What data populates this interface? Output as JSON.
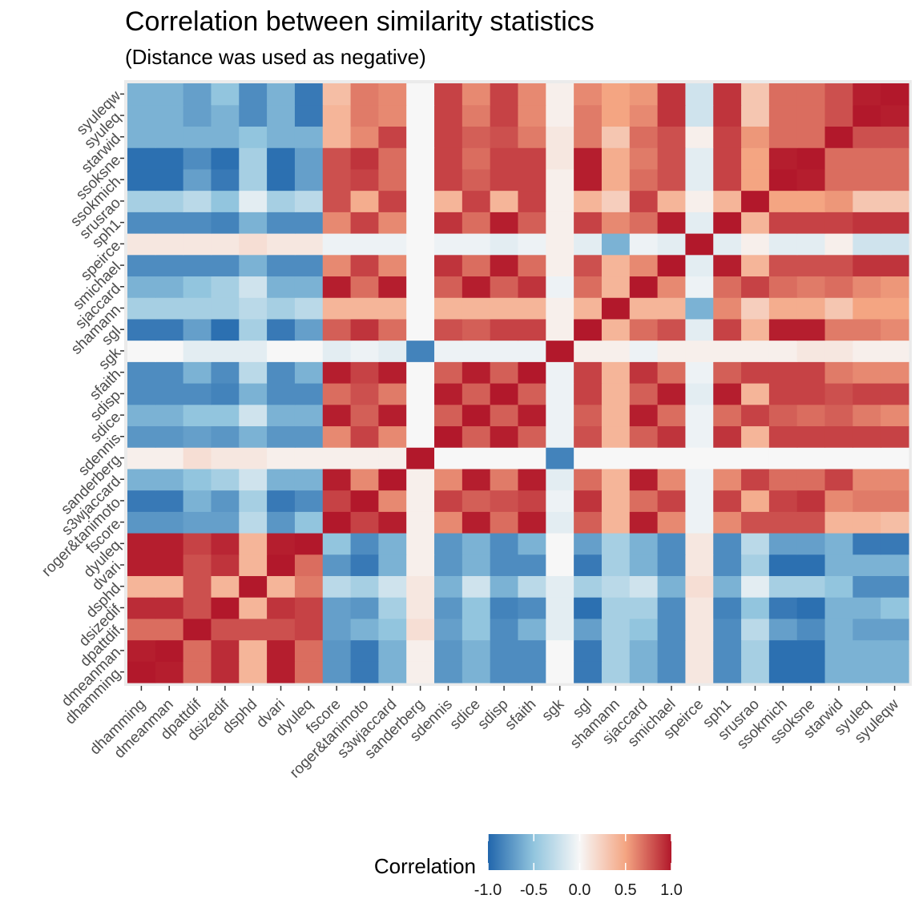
{
  "chart_data": {
    "type": "heatmap",
    "title": "Correlation between similarity statistics",
    "subtitle": "(Distance was used as negative)",
    "xlabel": "",
    "ylabel": "",
    "x_categories": [
      "dhamming",
      "dmeanman",
      "dpattdif",
      "dsizedif",
      "dsphd",
      "dvari",
      "dyuleq",
      "fscore",
      "roger&tanimoto",
      "s3wjaccard",
      "sanderberg",
      "sdennis",
      "sdice",
      "sdisp",
      "sfaith",
      "sgk",
      "sgl",
      "shamann",
      "sjaccard",
      "smichael",
      "speirce",
      "sph1",
      "srusrao",
      "ssokmich",
      "ssoksne",
      "starwid",
      "syuleq",
      "syuleqw"
    ],
    "y_categories": [
      "dhamming",
      "dmeanman",
      "dpattdif",
      "dsizedif",
      "dsphd",
      "dvari",
      "dyuleq",
      "fscore",
      "roger&tanimoto",
      "s3wjaccard",
      "sanderberg",
      "sdennis",
      "sdice",
      "sdisp",
      "sfaith",
      "sgk",
      "sgl",
      "shamann",
      "sjaccard",
      "smichael",
      "speirce",
      "sph1",
      "srusrao",
      "ssokmich",
      "ssoksne",
      "starwid",
      "syuleq",
      "syuleqw"
    ],
    "values": [
      [
        1,
        0.98,
        0.7,
        0.93,
        0.4,
        0.98,
        0.7,
        -0.75,
        -0.9,
        -0.6,
        0.05,
        -0.75,
        -0.6,
        -0.8,
        -0.8,
        0,
        -0.9,
        -0.4,
        -0.6,
        -0.8,
        0.1,
        -0.8,
        -0.4,
        -0.95,
        -0.95,
        -0.6,
        -0.6,
        -0.6
      ],
      [
        0.98,
        1,
        0.7,
        0.93,
        0.4,
        0.98,
        0.7,
        -0.75,
        -0.9,
        -0.6,
        0.05,
        -0.75,
        -0.6,
        -0.8,
        -0.8,
        0,
        -0.9,
        -0.4,
        -0.6,
        -0.8,
        0.1,
        -0.8,
        -0.4,
        -0.95,
        -0.95,
        -0.6,
        -0.6,
        -0.6
      ],
      [
        0.7,
        0.7,
        1,
        0.8,
        0.8,
        0.8,
        0.85,
        -0.7,
        -0.6,
        -0.5,
        0.15,
        -0.7,
        -0.5,
        -0.8,
        -0.6,
        -0.1,
        -0.7,
        -0.4,
        -0.5,
        -0.8,
        0.1,
        -0.8,
        -0.3,
        -0.7,
        -0.8,
        -0.6,
        -0.7,
        -0.7
      ],
      [
        0.93,
        0.93,
        0.8,
        1,
        0.4,
        0.9,
        0.85,
        -0.7,
        -0.75,
        -0.4,
        0.1,
        -0.75,
        -0.5,
        -0.85,
        -0.8,
        -0.1,
        -0.95,
        -0.4,
        -0.4,
        -0.8,
        0.1,
        -0.85,
        -0.5,
        -0.9,
        -0.95,
        -0.6,
        -0.6,
        -0.5
      ],
      [
        0.4,
        0.4,
        0.8,
        0.4,
        1,
        0.4,
        0.65,
        -0.3,
        -0.4,
        -0.2,
        0.1,
        -0.6,
        -0.2,
        -0.6,
        -0.3,
        -0.1,
        -0.4,
        -0.3,
        -0.2,
        -0.6,
        0.15,
        -0.6,
        -0.1,
        -0.4,
        -0.4,
        -0.5,
        -0.8,
        -0.8
      ],
      [
        0.98,
        0.98,
        0.8,
        0.9,
        0.4,
        1,
        0.7,
        -0.75,
        -0.9,
        -0.6,
        0.05,
        -0.75,
        -0.6,
        -0.8,
        -0.8,
        0,
        -0.9,
        -0.4,
        -0.6,
        -0.8,
        0.1,
        -0.8,
        -0.4,
        -0.95,
        -0.95,
        -0.6,
        -0.6,
        -0.6
      ],
      [
        0.98,
        0.98,
        0.85,
        0.95,
        0.4,
        0.98,
        1,
        -0.5,
        -0.8,
        -0.6,
        0.05,
        -0.75,
        -0.6,
        -0.8,
        -0.6,
        0,
        -0.7,
        -0.4,
        -0.6,
        -0.8,
        0.1,
        -0.8,
        -0.3,
        -0.7,
        -0.7,
        -0.6,
        -0.9,
        -0.9
      ],
      [
        -0.75,
        -0.75,
        -0.7,
        -0.7,
        -0.3,
        -0.75,
        -0.5,
        1,
        0.85,
        0.98,
        0.05,
        0.6,
        0.98,
        0.7,
        0.98,
        -0.1,
        0.75,
        0.4,
        0.98,
        0.6,
        -0.05,
        0.6,
        0.8,
        0.8,
        0.8,
        0.4,
        0.4,
        0.35
      ],
      [
        -0.9,
        -0.9,
        -0.6,
        -0.75,
        -0.4,
        -0.9,
        -0.8,
        0.85,
        1,
        0.6,
        0.05,
        0.85,
        0.75,
        0.8,
        0.85,
        -0.05,
        0.9,
        0.4,
        0.7,
        0.85,
        -0.05,
        0.85,
        0.45,
        0.85,
        0.9,
        0.6,
        0.65,
        0.65
      ],
      [
        -0.6,
        -0.6,
        -0.5,
        -0.4,
        -0.2,
        -0.6,
        -0.6,
        0.98,
        0.6,
        1,
        0.05,
        0.6,
        0.98,
        0.65,
        0.98,
        -0.1,
        0.7,
        0.4,
        0.98,
        0.6,
        -0.05,
        0.6,
        0.85,
        0.7,
        0.7,
        0.85,
        0.6,
        0.6
      ],
      [
        0.05,
        0.05,
        0.15,
        0.1,
        0.1,
        0.05,
        0.05,
        0.05,
        0.05,
        0.05,
        1,
        0,
        0,
        0,
        0,
        -0.85,
        0,
        0,
        0,
        0,
        0,
        0,
        0,
        0,
        0,
        0,
        0,
        0
      ],
      [
        -0.75,
        -0.75,
        -0.7,
        -0.75,
        -0.6,
        -0.75,
        -0.75,
        0.6,
        0.85,
        0.6,
        0,
        1,
        0.75,
        0.98,
        0.75,
        -0.05,
        0.8,
        0.4,
        0.75,
        0.9,
        -0.05,
        0.9,
        0.4,
        0.85,
        0.85,
        0.85,
        0.85,
        0.85
      ],
      [
        -0.6,
        -0.6,
        -0.5,
        -0.5,
        -0.2,
        -0.6,
        -0.6,
        0.98,
        0.75,
        0.98,
        0,
        0.75,
        1,
        0.75,
        0.98,
        -0.05,
        0.75,
        0.4,
        0.98,
        0.7,
        -0.05,
        0.7,
        0.85,
        0.75,
        0.7,
        0.75,
        0.65,
        0.6
      ],
      [
        -0.8,
        -0.8,
        -0.8,
        -0.85,
        -0.6,
        -0.8,
        -0.8,
        0.7,
        0.8,
        0.65,
        0,
        0.98,
        0.75,
        1,
        0.75,
        -0.05,
        0.85,
        0.4,
        0.75,
        0.98,
        -0.1,
        0.98,
        0.4,
        0.85,
        0.85,
        0.8,
        0.85,
        0.85
      ],
      [
        -0.8,
        -0.8,
        -0.6,
        -0.8,
        -0.3,
        -0.8,
        -0.6,
        0.98,
        0.85,
        0.98,
        0,
        0.75,
        0.98,
        0.75,
        1,
        -0.05,
        0.85,
        0.4,
        0.9,
        0.7,
        -0.05,
        0.75,
        0.85,
        0.85,
        0.85,
        0.65,
        0.6,
        0.6
      ],
      [
        0,
        0,
        -0.1,
        -0.1,
        -0.1,
        0,
        0,
        -0.1,
        -0.05,
        -0.1,
        -0.85,
        -0.05,
        -0.05,
        -0.05,
        -0.05,
        1,
        0.05,
        0.05,
        -0.05,
        0.05,
        0.05,
        0.05,
        0.05,
        0.05,
        0.1,
        0.1,
        0.05,
        0.05
      ],
      [
        -0.9,
        -0.9,
        -0.7,
        -0.95,
        -0.4,
        -0.9,
        -0.7,
        0.75,
        0.9,
        0.7,
        0,
        0.8,
        0.75,
        0.85,
        0.85,
        0.05,
        1,
        0.4,
        0.7,
        0.8,
        -0.1,
        0.85,
        0.4,
        0.98,
        0.98,
        0.65,
        0.65,
        0.6
      ],
      [
        -0.4,
        -0.4,
        -0.4,
        -0.4,
        -0.3,
        -0.4,
        -0.3,
        0.4,
        0.4,
        0.4,
        0,
        0.4,
        0.4,
        0.4,
        0.4,
        0.05,
        0.4,
        1,
        0.4,
        0.4,
        -0.6,
        0.6,
        0.25,
        0.45,
        0.45,
        0.3,
        0.5,
        0.5
      ],
      [
        -0.6,
        -0.6,
        -0.5,
        -0.4,
        -0.2,
        -0.6,
        -0.6,
        0.98,
        0.7,
        0.98,
        0,
        0.75,
        0.98,
        0.75,
        0.9,
        -0.05,
        0.7,
        0.4,
        1,
        0.6,
        -0.05,
        0.7,
        0.85,
        0.7,
        0.65,
        0.7,
        0.6,
        0.55
      ],
      [
        -0.8,
        -0.8,
        -0.8,
        -0.8,
        -0.6,
        -0.8,
        -0.8,
        0.6,
        0.85,
        0.6,
        0,
        0.9,
        0.7,
        0.98,
        0.7,
        0.05,
        0.8,
        0.4,
        0.6,
        1,
        -0.1,
        0.98,
        0.4,
        0.8,
        0.8,
        0.8,
        0.9,
        0.9
      ],
      [
        0.1,
        0.1,
        0.1,
        0.1,
        0.15,
        0.1,
        0.1,
        -0.05,
        -0.05,
        -0.05,
        0,
        -0.05,
        -0.05,
        -0.1,
        -0.05,
        0.05,
        -0.1,
        -0.6,
        -0.05,
        -0.1,
        1,
        -0.1,
        0.05,
        -0.1,
        -0.1,
        0.05,
        -0.2,
        -0.2
      ],
      [
        -0.8,
        -0.8,
        -0.8,
        -0.85,
        -0.6,
        -0.8,
        -0.8,
        0.6,
        0.85,
        0.6,
        0,
        0.9,
        0.7,
        0.98,
        0.75,
        0.05,
        0.85,
        0.6,
        0.7,
        0.98,
        -0.1,
        1,
        0.4,
        0.85,
        0.85,
        0.85,
        0.9,
        0.9
      ],
      [
        -0.4,
        -0.4,
        -0.3,
        -0.5,
        -0.1,
        -0.4,
        -0.3,
        0.8,
        0.45,
        0.85,
        0,
        0.4,
        0.85,
        0.4,
        0.85,
        0.05,
        0.4,
        0.25,
        0.85,
        0.4,
        0.05,
        0.4,
        1,
        0.5,
        0.5,
        0.55,
        0.3,
        0.3
      ],
      [
        -0.95,
        -0.95,
        -0.7,
        -0.9,
        -0.4,
        -0.95,
        -0.7,
        0.8,
        0.85,
        0.7,
        0,
        0.85,
        0.75,
        0.85,
        0.85,
        0.05,
        0.98,
        0.45,
        0.7,
        0.8,
        -0.1,
        0.85,
        0.5,
        1,
        0.98,
        0.7,
        0.7,
        0.7
      ],
      [
        -0.95,
        -0.95,
        -0.8,
        -0.95,
        -0.4,
        -0.95,
        -0.7,
        0.8,
        0.9,
        0.7,
        0,
        0.85,
        0.7,
        0.85,
        0.85,
        0.1,
        0.98,
        0.45,
        0.65,
        0.8,
        -0.1,
        0.85,
        0.5,
        0.98,
        1,
        0.7,
        0.7,
        0.7
      ],
      [
        -0.6,
        -0.6,
        -0.6,
        -0.6,
        -0.5,
        -0.6,
        -0.6,
        0.4,
        0.6,
        0.85,
        0,
        0.85,
        0.75,
        0.8,
        0.65,
        0.1,
        0.65,
        0.3,
        0.7,
        0.8,
        0.05,
        0.85,
        0.55,
        0.7,
        0.7,
        1,
        0.8,
        0.8
      ],
      [
        -0.6,
        -0.6,
        -0.7,
        -0.6,
        -0.8,
        -0.6,
        -0.9,
        0.4,
        0.65,
        0.6,
        0,
        0.85,
        0.65,
        0.85,
        0.6,
        0.05,
        0.65,
        0.5,
        0.6,
        0.9,
        -0.2,
        0.9,
        0.3,
        0.7,
        0.7,
        0.8,
        1,
        0.98
      ],
      [
        -0.6,
        -0.6,
        -0.7,
        -0.5,
        -0.8,
        -0.6,
        -0.9,
        0.35,
        0.65,
        0.6,
        0,
        0.85,
        0.6,
        0.85,
        0.6,
        0.05,
        0.6,
        0.5,
        0.55,
        0.9,
        -0.2,
        0.9,
        0.3,
        0.7,
        0.7,
        0.8,
        0.98,
        1
      ]
    ],
    "value_range": [
      -1,
      1
    ],
    "colors": {
      "low": "#2166ac",
      "mid": "#f7f7f7",
      "high": "#b2182b"
    },
    "legend": {
      "title": "Correlation",
      "ticks": [
        "-1.0",
        "-0.5",
        "0.0",
        "0.5",
        "1.0"
      ],
      "placement": "bottom"
    },
    "grid": true
  }
}
